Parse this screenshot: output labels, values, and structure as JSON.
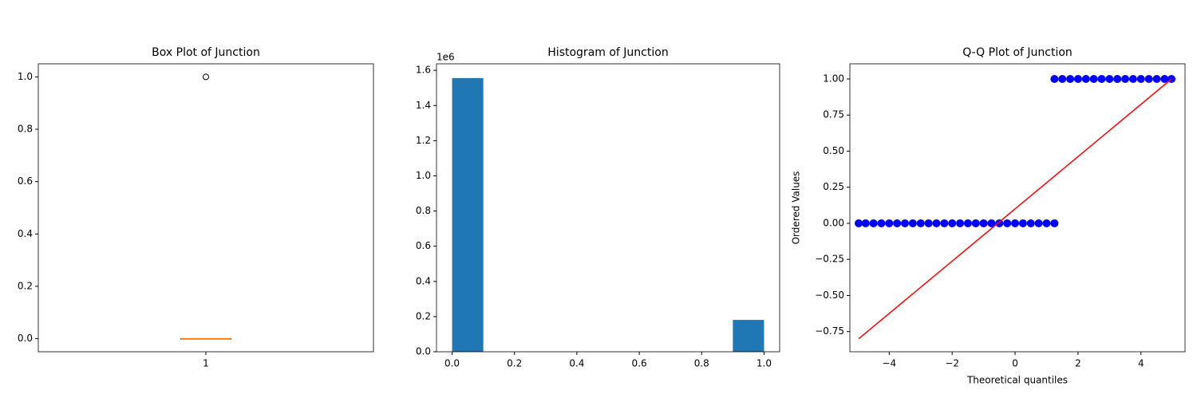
{
  "chart_data": [
    {
      "type": "box",
      "title": "Box Plot of Junction",
      "boxes": [
        {
          "position": 1,
          "min": 0,
          "q1": 0,
          "median": 0,
          "q3": 0,
          "max": 0,
          "fliers": [
            1
          ]
        }
      ],
      "box_color": "#000000",
      "median_color": "#ff7f0e",
      "xlim": [
        0.5,
        1.5
      ],
      "xticks": [
        1
      ],
      "ylim": [
        -0.05,
        1.05
      ],
      "yticks": [
        {
          "value": 0,
          "label": "0.0"
        },
        {
          "value": 0.2,
          "label": "0.2"
        },
        {
          "value": 0.4,
          "label": "0.4"
        },
        {
          "value": 0.6,
          "label": "0.6"
        },
        {
          "value": 0.8,
          "label": "0.8"
        },
        {
          "value": 1.0,
          "label": "1.0"
        }
      ]
    },
    {
      "type": "histogram",
      "title": "Histogram of Junction",
      "offset_label": "1e6",
      "color": "#1f77b4",
      "bins": [
        0,
        0.1,
        0.2,
        0.3,
        0.4,
        0.5,
        0.6,
        0.7,
        0.8,
        0.9,
        1.0
      ],
      "counts": [
        1556000,
        0,
        0,
        0,
        0,
        0,
        0,
        0,
        0,
        181000
      ],
      "xlim": [
        -0.05,
        1.05
      ],
      "xticks": [
        {
          "value": 0,
          "label": "0.0"
        },
        {
          "value": 0.2,
          "label": "0.2"
        },
        {
          "value": 0.4,
          "label": "0.4"
        },
        {
          "value": 0.6,
          "label": "0.6"
        },
        {
          "value": 0.8,
          "label": "0.8"
        },
        {
          "value": 1.0,
          "label": "1.0"
        }
      ],
      "ylim": [
        0,
        1637000
      ],
      "yticks": [
        {
          "value": 0,
          "label": "0.0"
        },
        {
          "value": 200000,
          "label": "0.2"
        },
        {
          "value": 400000,
          "label": "0.4"
        },
        {
          "value": 600000,
          "label": "0.6"
        },
        {
          "value": 800000,
          "label": "0.8"
        },
        {
          "value": 1000000,
          "label": "1.0"
        },
        {
          "value": 1200000,
          "label": "1.2"
        },
        {
          "value": 1400000,
          "label": "1.4"
        },
        {
          "value": 1600000,
          "label": "1.6"
        }
      ]
    },
    {
      "type": "scatter",
      "title": "Q-Q Plot of Junction",
      "xlabel": "Theoretical quantiles",
      "ylabel": "Ordered Values",
      "series": [
        {
          "color": "#0000ff",
          "x": [
            -4.97,
            -4.75,
            -4.5,
            -4.25,
            -4,
            -3.75,
            -3.5,
            -3.25,
            -3,
            -2.75,
            -2.5,
            -2.25,
            -2,
            -1.75,
            -1.5,
            -1.25,
            -1,
            -0.75,
            -0.5,
            -0.25,
            0,
            0.25,
            0.5,
            0.75,
            1,
            1.25,
            1.25,
            1.5,
            1.75,
            2,
            2.25,
            2.5,
            2.75,
            3,
            3.25,
            3.5,
            3.75,
            4,
            4.25,
            4.5,
            4.75,
            4.97
          ],
          "values": [
            0,
            0,
            0,
            0,
            0,
            0,
            0,
            0,
            0,
            0,
            0,
            0,
            0,
            0,
            0,
            0,
            0,
            0,
            0,
            0,
            0,
            0,
            0,
            0,
            0,
            0,
            1,
            1,
            1,
            1,
            1,
            1,
            1,
            1,
            1,
            1,
            1,
            1,
            1,
            1,
            1,
            1
          ]
        },
        {
          "color": "#ff0000",
          "style": "line",
          "x": [
            -4.97,
            4.97
          ],
          "values": [
            -0.8,
            1.0
          ]
        }
      ],
      "xlim": [
        -5.25,
        5.4
      ],
      "xticks": [
        {
          "value": -4,
          "label": "−4"
        },
        {
          "value": -2,
          "label": "−2"
        },
        0,
        2,
        4
      ],
      "ylim": [
        -0.89,
        1.105
      ],
      "yticks": [
        {
          "value": -0.75,
          "label": "−0.75"
        },
        {
          "value": -0.5,
          "label": "−0.50"
        },
        {
          "value": -0.25,
          "label": "−0.25"
        },
        {
          "value": 0,
          "label": "0.00"
        },
        {
          "value": 0.25,
          "label": "0.25"
        },
        {
          "value": 0.5,
          "label": "0.50"
        },
        {
          "value": 0.75,
          "label": "0.75"
        },
        {
          "value": 1.0,
          "label": "1.00"
        }
      ]
    }
  ]
}
